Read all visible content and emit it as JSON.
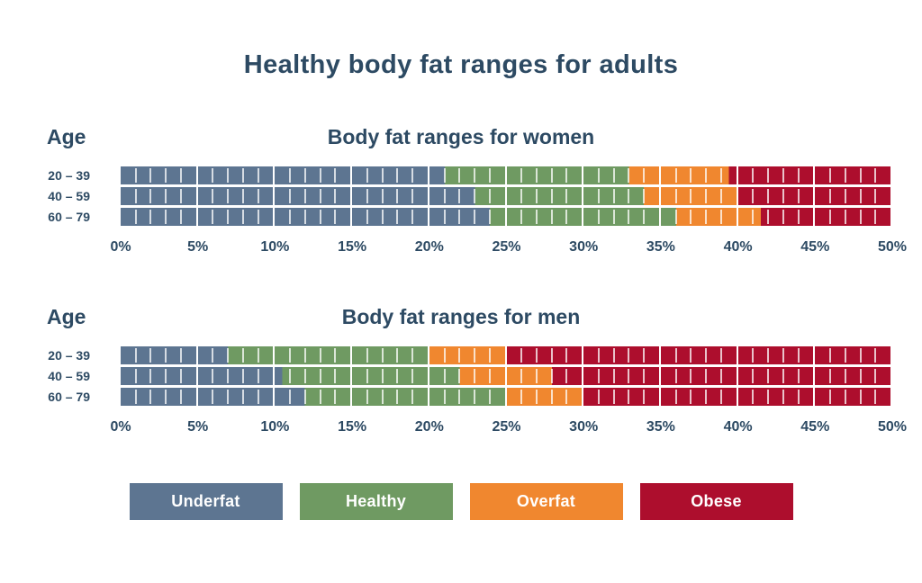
{
  "page": {
    "title": "Healthy body fat ranges for adults",
    "background_color": "#ffffff",
    "text_color": "#2d4a63"
  },
  "legend": {
    "items": [
      {
        "label": "Underfat",
        "color": "#5d7591"
      },
      {
        "label": "Healthy",
        "color": "#6f9a62"
      },
      {
        "label": "Overfat",
        "color": "#f0872f"
      },
      {
        "label": "Obese",
        "color": "#ad0e2d"
      }
    ]
  },
  "chart_data": [
    {
      "type": "bar",
      "stacked": true,
      "orientation": "horizontal",
      "title": "Body fat ranges for women",
      "ylabel": "Age",
      "xlabel": "",
      "categories": [
        "20 – 39",
        "40 – 59",
        "60 – 79"
      ],
      "xlim": [
        0,
        50
      ],
      "x_tick_labels": [
        "0%",
        "5%",
        "10%",
        "15%",
        "20%",
        "25%",
        "30%",
        "35%",
        "40%",
        "45%",
        "50%"
      ],
      "grid": "1% cell ticks inside 5% blocks, gaps at every 5%",
      "legend_position": "bottom-shared",
      "series": [
        {
          "name": "Underfat",
          "color": "#5d7591",
          "ranges": [
            [
              0,
              21
            ],
            [
              0,
              23
            ],
            [
              0,
              24
            ]
          ]
        },
        {
          "name": "Healthy",
          "color": "#6f9a62",
          "ranges": [
            [
              21,
              33
            ],
            [
              23,
              34
            ],
            [
              24,
              36
            ]
          ]
        },
        {
          "name": "Overfat",
          "color": "#f0872f",
          "ranges": [
            [
              33,
              39.5
            ],
            [
              34,
              40
            ],
            [
              36,
              41.5
            ]
          ]
        },
        {
          "name": "Obese",
          "color": "#ad0e2d",
          "ranges": [
            [
              39.5,
              50
            ],
            [
              40,
              50
            ],
            [
              41.5,
              50
            ]
          ]
        }
      ]
    },
    {
      "type": "bar",
      "stacked": true,
      "orientation": "horizontal",
      "title": "Body fat ranges for men",
      "ylabel": "Age",
      "xlabel": "",
      "categories": [
        "20 – 39",
        "40 – 59",
        "60 – 79"
      ],
      "xlim": [
        0,
        50
      ],
      "x_tick_labels": [
        "0%",
        "5%",
        "10%",
        "15%",
        "20%",
        "25%",
        "30%",
        "35%",
        "40%",
        "45%",
        "50%"
      ],
      "grid": "1% cell ticks inside 5% blocks, gaps at every 5%",
      "legend_position": "bottom-shared",
      "series": [
        {
          "name": "Underfat",
          "color": "#5d7591",
          "ranges": [
            [
              0,
              7
            ],
            [
              0,
              10.5
            ],
            [
              0,
              12
            ]
          ]
        },
        {
          "name": "Healthy",
          "color": "#6f9a62",
          "ranges": [
            [
              7,
              20
            ],
            [
              10.5,
              22
            ],
            [
              12,
              25
            ]
          ]
        },
        {
          "name": "Overfat",
          "color": "#f0872f",
          "ranges": [
            [
              20,
              25
            ],
            [
              22,
              28
            ],
            [
              25,
              30
            ]
          ]
        },
        {
          "name": "Obese",
          "color": "#ad0e2d",
          "ranges": [
            [
              25,
              50
            ],
            [
              28,
              50
            ],
            [
              30,
              50
            ]
          ]
        }
      ]
    }
  ]
}
